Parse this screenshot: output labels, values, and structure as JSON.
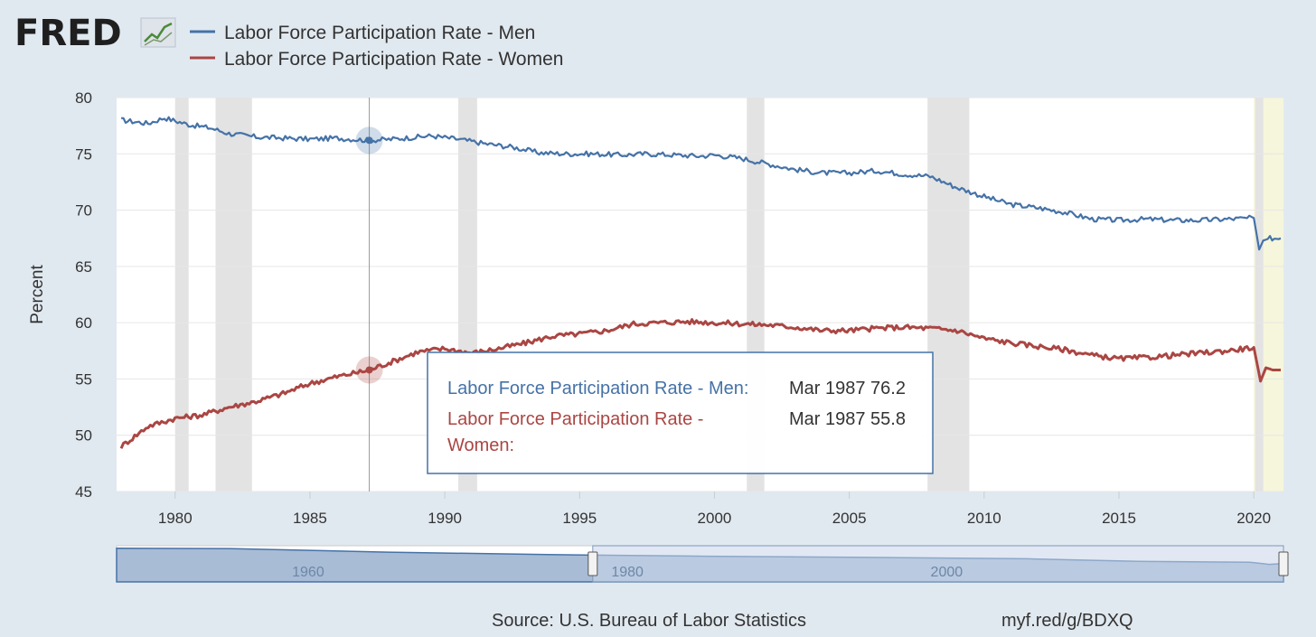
{
  "logo": {
    "text": "FRED"
  },
  "colors": {
    "men": "#4572a7",
    "women": "#aa4643",
    "recession": "#e3e3e3",
    "highlight": "#f6f6dc",
    "grid": "#e6e6e6",
    "navigator_fill": "#a8bcd6",
    "navigator_selected": "#c9d6ea"
  },
  "chart_data": {
    "type": "line",
    "ylabel": "Percent",
    "ylim": [
      45,
      80
    ],
    "yticks": [
      45,
      50,
      55,
      60,
      65,
      70,
      75,
      80
    ],
    "xlim": [
      1977.83,
      2021.1
    ],
    "xticks": [
      1980,
      1985,
      1990,
      1995,
      2000,
      2005,
      2010,
      2015,
      2020
    ],
    "grid": true,
    "legend_position": "top-left",
    "series": [
      {
        "name": "Labor Force Participation Rate - Men",
        "color": "#4572a7",
        "x": [
          1978.0,
          1979.0,
          1979.6,
          1980.5,
          1981.3,
          1982.0,
          1983.0,
          1984.0,
          1985.0,
          1986.0,
          1987.2,
          1988.0,
          1989.5,
          1990.5,
          1991.5,
          1992.5,
          1993.5,
          1994.5,
          1995.5,
          1996.5,
          1997.5,
          1998.5,
          1999.5,
          2000.0,
          2001.0,
          2002.0,
          2003.0,
          2004.0,
          2005.0,
          2006.0,
          2007.0,
          2008.0,
          2009.0,
          2010.0,
          2011.0,
          2012.0,
          2013.0,
          2014.0,
          2015.0,
          2016.0,
          2017.0,
          2018.0,
          2019.0,
          2020.0,
          2020.2,
          2020.35,
          2020.6,
          2021.0
        ],
        "y": [
          78.0,
          77.7,
          78.2,
          77.6,
          77.3,
          76.8,
          76.5,
          76.4,
          76.3,
          76.4,
          76.2,
          76.3,
          76.6,
          76.3,
          75.9,
          75.6,
          75.1,
          75.0,
          75.0,
          74.9,
          75.0,
          74.9,
          74.8,
          74.9,
          74.6,
          74.1,
          73.6,
          73.3,
          73.3,
          73.5,
          73.2,
          73.0,
          72.0,
          71.2,
          70.5,
          70.2,
          69.8,
          69.2,
          69.1,
          69.2,
          69.1,
          69.1,
          69.2,
          69.3,
          66.5,
          67.3,
          67.5,
          67.5
        ]
      },
      {
        "name": "Labor Force Participation Rate - Women",
        "color": "#aa4643",
        "x": [
          1978.0,
          1979.0,
          1980.0,
          1981.0,
          1982.0,
          1983.0,
          1984.0,
          1985.0,
          1986.0,
          1987.2,
          1988.0,
          1989.0,
          1990.0,
          1991.0,
          1992.0,
          1993.0,
          1994.0,
          1995.0,
          1996.0,
          1997.0,
          1998.0,
          1999.0,
          2000.0,
          2001.0,
          2002.0,
          2003.0,
          2004.0,
          2005.0,
          2006.0,
          2007.0,
          2008.0,
          2009.0,
          2010.0,
          2011.0,
          2012.0,
          2013.0,
          2014.0,
          2015.0,
          2016.0,
          2017.0,
          2018.0,
          2019.0,
          2020.0,
          2020.25,
          2020.45,
          2020.7,
          2021.0
        ],
        "y": [
          49.0,
          50.8,
          51.5,
          51.8,
          52.5,
          53.0,
          53.7,
          54.6,
          55.2,
          55.8,
          56.5,
          57.4,
          57.7,
          57.3,
          57.7,
          58.2,
          58.8,
          59.0,
          59.3,
          59.9,
          60.0,
          60.1,
          60.0,
          59.9,
          59.8,
          59.6,
          59.3,
          59.3,
          59.5,
          59.6,
          59.5,
          59.3,
          58.6,
          58.2,
          57.9,
          57.6,
          57.1,
          56.8,
          56.9,
          57.1,
          57.3,
          57.5,
          57.8,
          54.8,
          56.0,
          55.8,
          55.8
        ]
      }
    ],
    "recessions": [
      [
        1980.0,
        1980.5
      ],
      [
        1981.5,
        1982.85
      ],
      [
        1990.5,
        1991.2
      ],
      [
        2001.2,
        2001.85
      ],
      [
        2007.9,
        2009.45
      ],
      [
        2020.05,
        2020.35
      ]
    ],
    "highlight_range": [
      2020.0,
      2021.1
    ],
    "tooltip": {
      "date_index_label": "Mar 1987",
      "x": 1987.2,
      "rows": [
        {
          "label": "Labor Force Participation Rate - Men:",
          "value": "Mar 1987 76.2"
        },
        {
          "label_line1": "Labor Force Participation Rate -",
          "label_line2": "Women:",
          "value": "Mar 1987 55.8"
        }
      ]
    },
    "navigator": {
      "xlim": [
        1948.0,
        2021.1
      ],
      "labels": [
        "1960",
        "1980",
        "2000"
      ],
      "label_years": [
        1960,
        1980,
        2000
      ],
      "selected_range": [
        1977.83,
        2021.1
      ]
    }
  },
  "footer": {
    "source": "Source: U.S. Bureau of Labor Statistics",
    "link": "myf.red/g/BDXQ"
  }
}
